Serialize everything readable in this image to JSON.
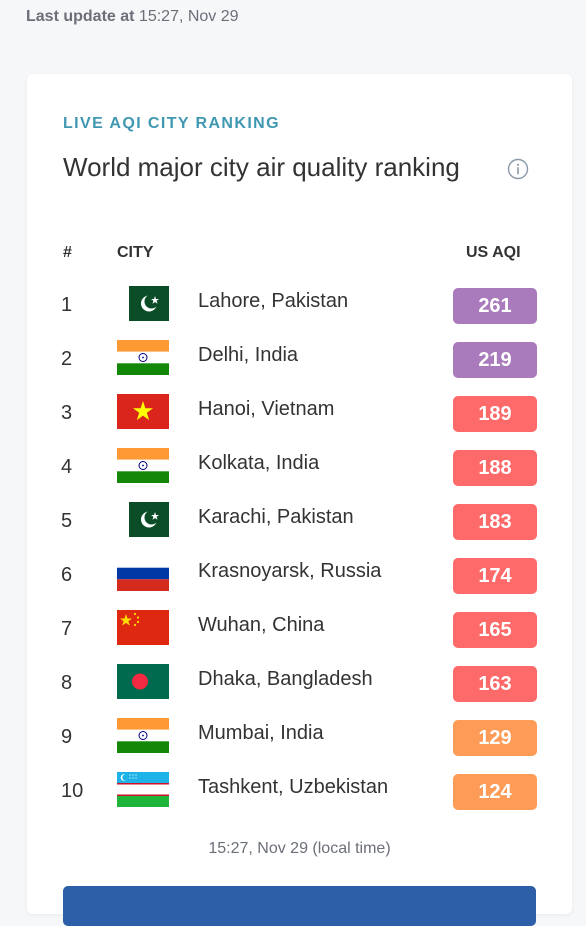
{
  "last_update": {
    "label": "Last update at",
    "time": "15:27, Nov 29"
  },
  "card": {
    "kicker": "LIVE AQI CITY RANKING",
    "title": "World major city air quality ranking",
    "info_icon": "info-circle-icon",
    "columns": {
      "rank": "#",
      "city": "CITY",
      "aqi": "US AQI"
    },
    "footer_time": "15:27, Nov 29 (local time)"
  },
  "colors": {
    "purple": "#a97abc",
    "red": "#fe6a69",
    "orange": "#fe9b57",
    "accent": "#3f97b1"
  },
  "rankings": [
    {
      "rank": "1",
      "city": "Lahore, Pakistan",
      "aqi": "261",
      "flag": "pakistan",
      "level": "purple"
    },
    {
      "rank": "2",
      "city": "Delhi, India",
      "aqi": "219",
      "flag": "india",
      "level": "purple"
    },
    {
      "rank": "3",
      "city": "Hanoi, Vietnam",
      "aqi": "189",
      "flag": "vietnam",
      "level": "red"
    },
    {
      "rank": "4",
      "city": "Kolkata, India",
      "aqi": "188",
      "flag": "india",
      "level": "red"
    },
    {
      "rank": "5",
      "city": "Karachi, Pakistan",
      "aqi": "183",
      "flag": "pakistan",
      "level": "red"
    },
    {
      "rank": "6",
      "city": "Krasnoyarsk, Russia",
      "aqi": "174",
      "flag": "russia",
      "level": "red"
    },
    {
      "rank": "7",
      "city": "Wuhan, China",
      "aqi": "165",
      "flag": "china",
      "level": "red"
    },
    {
      "rank": "8",
      "city": "Dhaka, Bangladesh",
      "aqi": "163",
      "flag": "bangladesh",
      "level": "red"
    },
    {
      "rank": "9",
      "city": "Mumbai, India",
      "aqi": "129",
      "flag": "india",
      "level": "orange"
    },
    {
      "rank": "10",
      "city": "Tashkent, Uzbekistan",
      "aqi": "124",
      "flag": "uzbekistan",
      "level": "orange"
    }
  ]
}
